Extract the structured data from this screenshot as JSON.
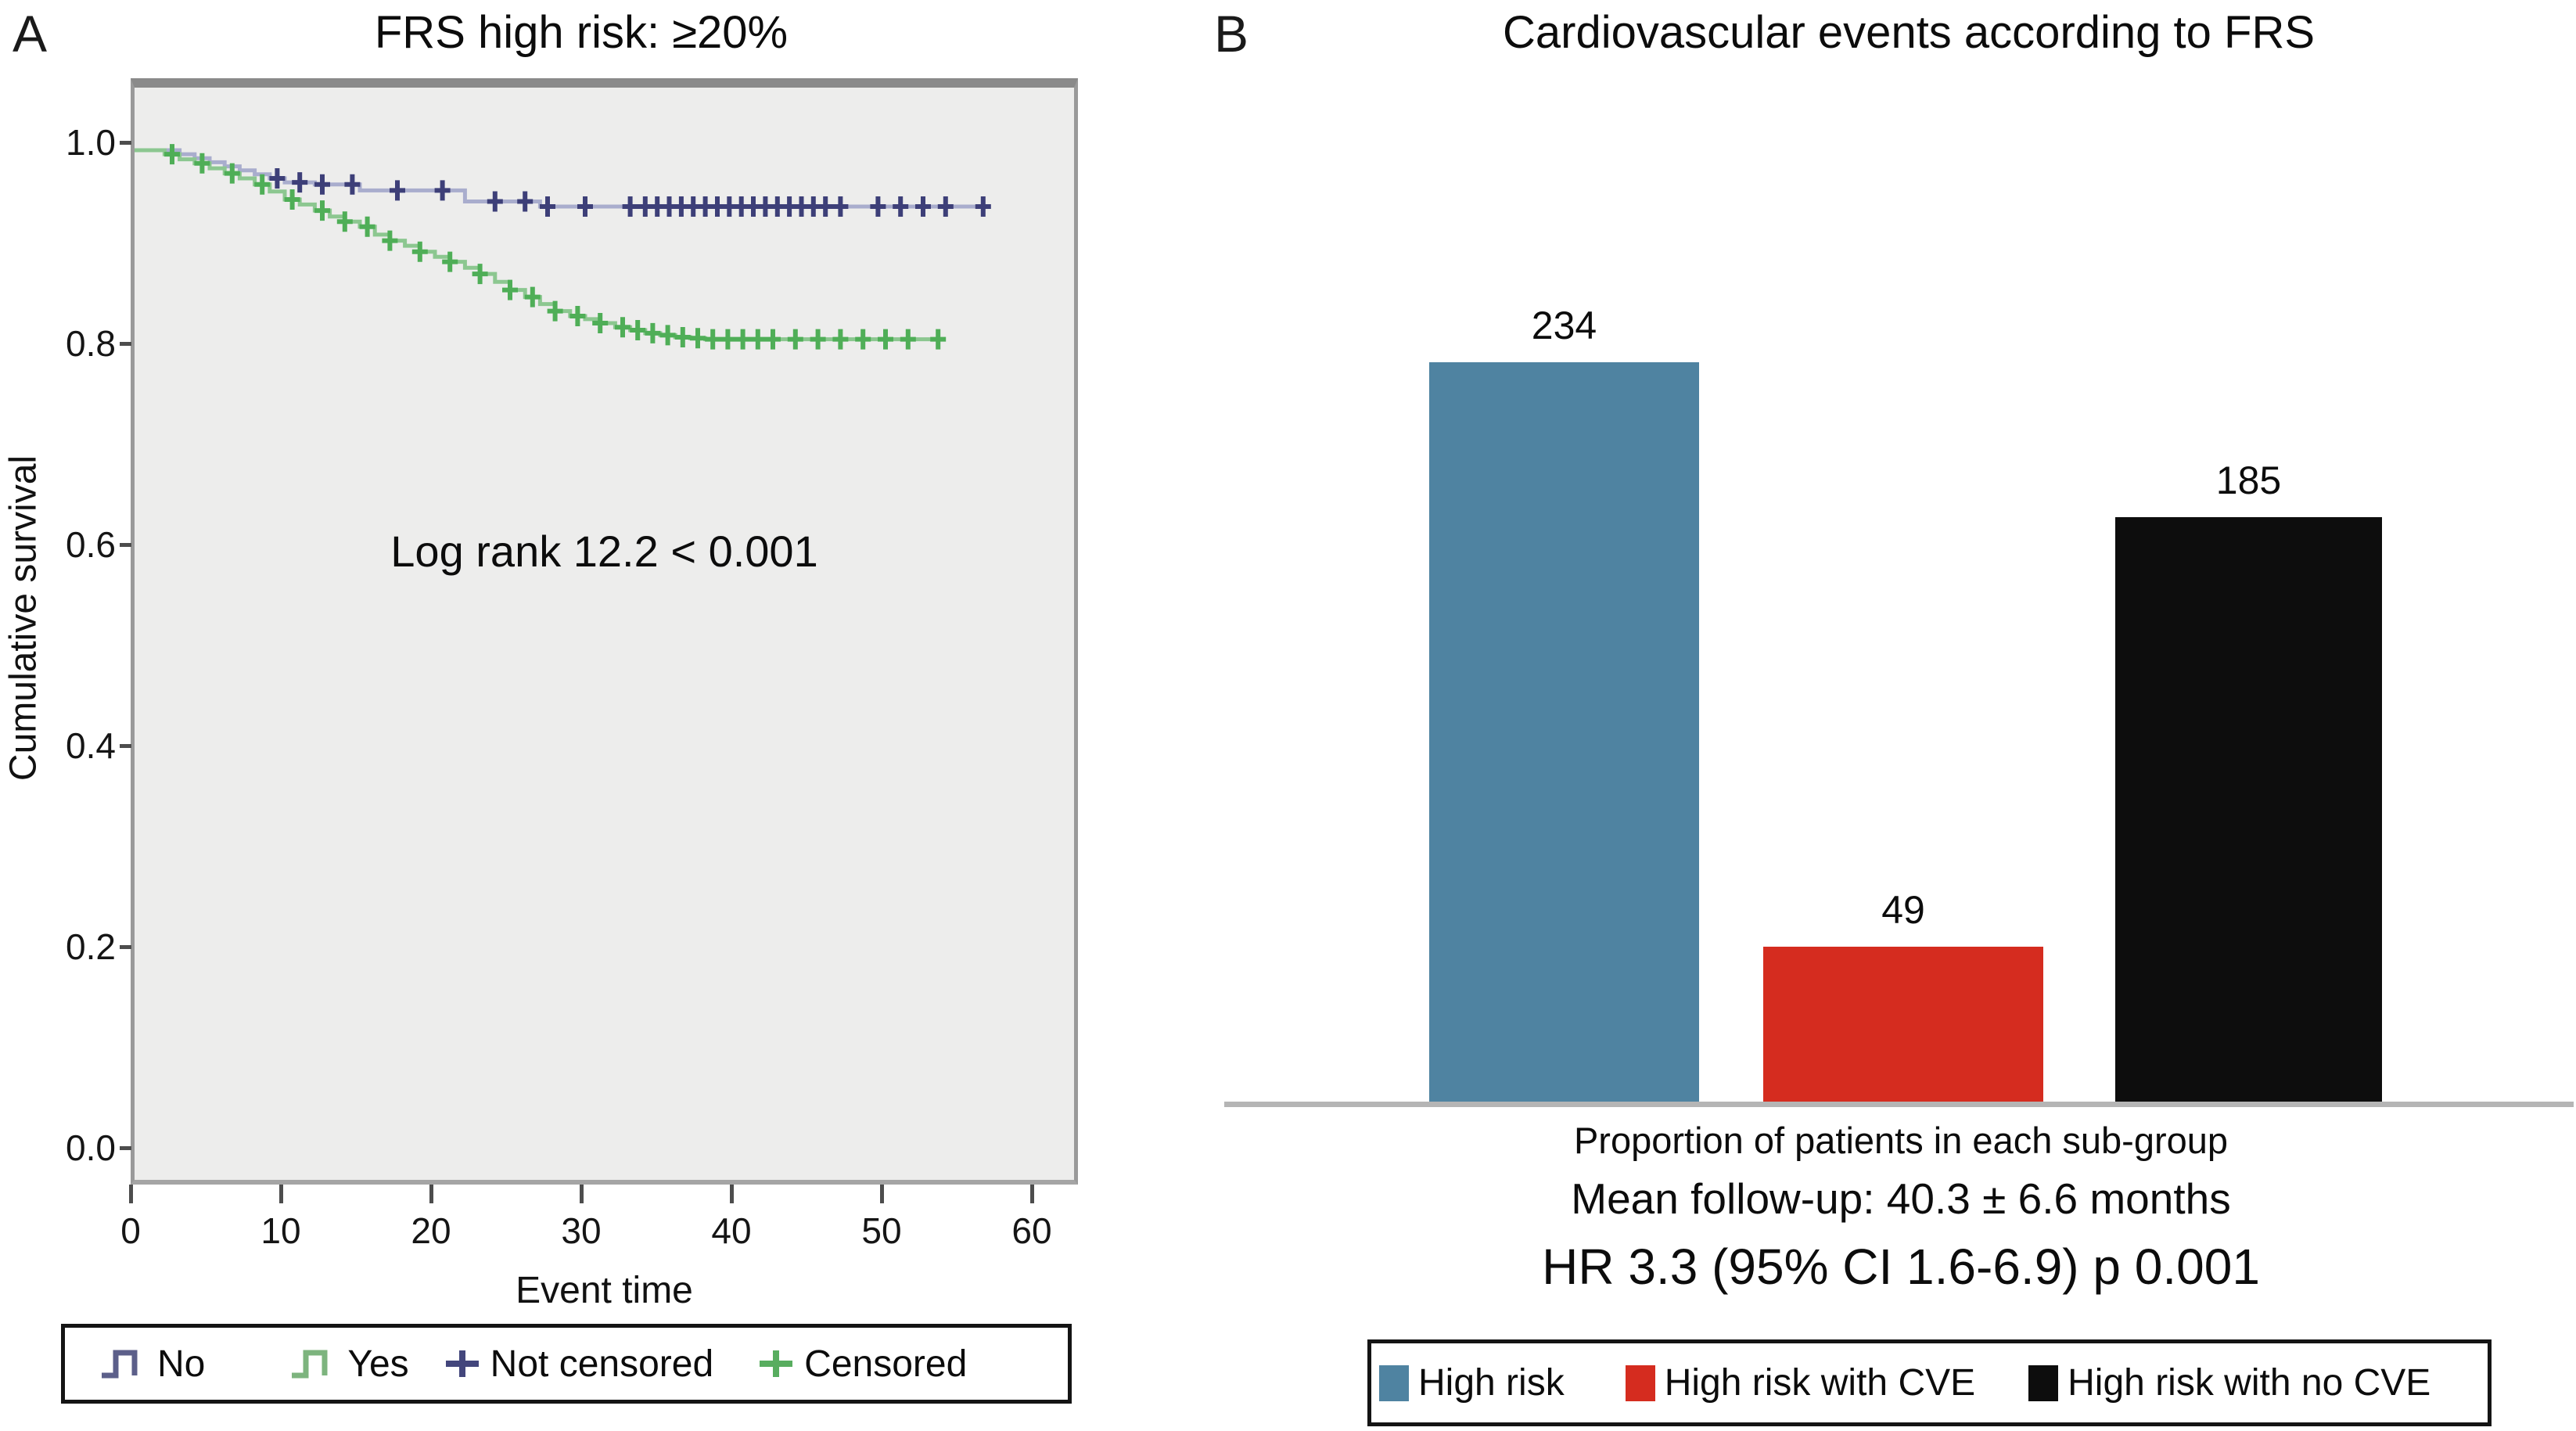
{
  "figure": {
    "panelA": {
      "label": "A",
      "title": "FRS high risk: ≥20%",
      "ylabel": "Cumulative survival",
      "xlabel": "Event time",
      "annotation": "Log rank 12.2 < 0.001",
      "y_ticks": [
        "1.0",
        "0.8",
        "0.6",
        "0.4",
        "0.2",
        "0.0"
      ],
      "x_ticks": [
        "0",
        "10",
        "20",
        "30",
        "40",
        "50",
        "60"
      ],
      "legend": [
        {
          "label": "No",
          "icon": "step",
          "color": "#5c5f8a"
        },
        {
          "label": "Yes",
          "icon": "step",
          "color": "#7db47e"
        },
        {
          "label": "Not censored",
          "icon": "plus",
          "color": "#43467c"
        },
        {
          "label": "Censored",
          "icon": "plus",
          "color": "#58ad5f"
        }
      ]
    },
    "panelB": {
      "label": "B",
      "title": "Cardiovascular events according to FRS",
      "caption": "Proportion of patients in each sub-group",
      "mean_followup": "Mean follow-up: 40.3 ± 6.6 months",
      "hazard_ratio": "HR 3.3 (95% CI 1.6-6.9) p 0.001",
      "legend": [
        {
          "label": "High risk",
          "color": "#4f83a1"
        },
        {
          "label": "High risk with CVE",
          "color": "#d52c1f"
        },
        {
          "label": "High risk with no CVE",
          "color": "#0d0d0d"
        }
      ]
    }
  },
  "chart_data": [
    {
      "type": "line",
      "subtype": "kaplan-meier-step",
      "title": "FRS high risk: ≥20%",
      "xlabel": "Event time",
      "ylabel": "Cumulative survival",
      "xlim": [
        0,
        62.5
      ],
      "ylim": [
        0.0,
        1.05
      ],
      "x_ticks": [
        0,
        10,
        20,
        30,
        40,
        50,
        60
      ],
      "y_ticks": [
        1.0,
        0.8,
        0.6,
        0.4,
        0.2,
        0.0
      ],
      "grid": false,
      "legend_position": "bottom",
      "annotation": "Log rank 12.2 < 0.001",
      "plot_background": "#ededec",
      "series": [
        {
          "name": "No",
          "mark_color": "#3d3f78",
          "line_color": "#a9adcd",
          "steps": [
            [
              0,
              1.0
            ],
            [
              3,
              0.996
            ],
            [
              4,
              0.992
            ],
            [
              5,
              0.988
            ],
            [
              6,
              0.984
            ],
            [
              7,
              0.98
            ],
            [
              8,
              0.976
            ],
            [
              9,
              0.972
            ],
            [
              10,
              0.968
            ],
            [
              12,
              0.966
            ],
            [
              15,
              0.96
            ],
            [
              22,
              0.949
            ],
            [
              27,
              0.944
            ],
            [
              57,
              0.944
            ]
          ],
          "censor_times": [
            9.5,
            11,
            12.5,
            14.5,
            17.5,
            20.5,
            24,
            26,
            27.5,
            30,
            33,
            34,
            34.8,
            35.6,
            36.4,
            37.2,
            38,
            38.8,
            39.6,
            40.4,
            41.2,
            42,
            42.8,
            43.6,
            44.4,
            45.2,
            46,
            47,
            49.5,
            51,
            52.5,
            54,
            56.5
          ]
        },
        {
          "name": "Yes",
          "mark_color": "#4fae57",
          "line_color": "#8cc790",
          "steps": [
            [
              0,
              1.0
            ],
            [
              2,
              0.996
            ],
            [
              3,
              0.991
            ],
            [
              4,
              0.987
            ],
            [
              5,
              0.982
            ],
            [
              6,
              0.977
            ],
            [
              7,
              0.972
            ],
            [
              8,
              0.966
            ],
            [
              9,
              0.959
            ],
            [
              10,
              0.951
            ],
            [
              11,
              0.946
            ],
            [
              12,
              0.94
            ],
            [
              13,
              0.934
            ],
            [
              14,
              0.929
            ],
            [
              15,
              0.924
            ],
            [
              16,
              0.916
            ],
            [
              17,
              0.91
            ],
            [
              18,
              0.905
            ],
            [
              19,
              0.899
            ],
            [
              20,
              0.894
            ],
            [
              21,
              0.889
            ],
            [
              22,
              0.883
            ],
            [
              23,
              0.877
            ],
            [
              24,
              0.869
            ],
            [
              25,
              0.861
            ],
            [
              26,
              0.854
            ],
            [
              27,
              0.847
            ],
            [
              28,
              0.84
            ],
            [
              29,
              0.835
            ],
            [
              30,
              0.832
            ],
            [
              31,
              0.828
            ],
            [
              32,
              0.824
            ],
            [
              33,
              0.821
            ],
            [
              34,
              0.818
            ],
            [
              35,
              0.816
            ],
            [
              36,
              0.814
            ],
            [
              37,
              0.813
            ],
            [
              38,
              0.812
            ],
            [
              54,
              0.812
            ]
          ],
          "censor_times": [
            2.5,
            4.5,
            6.5,
            8.5,
            10.5,
            12.5,
            14,
            15.5,
            17,
            19,
            21,
            23,
            25,
            26.5,
            28,
            29.5,
            31,
            32.5,
            33.5,
            34.5,
            35.5,
            36.5,
            37.5,
            38.5,
            39.5,
            40.5,
            41.5,
            42.5,
            44,
            45.5,
            47,
            48.5,
            50,
            51.5,
            53.5
          ]
        }
      ]
    },
    {
      "type": "bar",
      "title": "Cardiovascular events according to FRS",
      "categories": [
        "High risk",
        "High risk with CVE",
        "High risk with no CVE"
      ],
      "values": [
        234,
        49,
        185
      ],
      "colors": [
        "#4f83a1",
        "#d52c1f",
        "#0d0d0d"
      ],
      "bar_labels": [
        "234",
        "49",
        "185"
      ],
      "xlabel": "Proportion of patients in each sub-group",
      "ylim": [
        0,
        250
      ],
      "grid": false,
      "legend_position": "bottom",
      "annotations": [
        "Mean follow-up: 40.3 ± 6.6 months",
        "HR 3.3 (95% CI 1.6-6.9) p 0.001"
      ]
    }
  ]
}
